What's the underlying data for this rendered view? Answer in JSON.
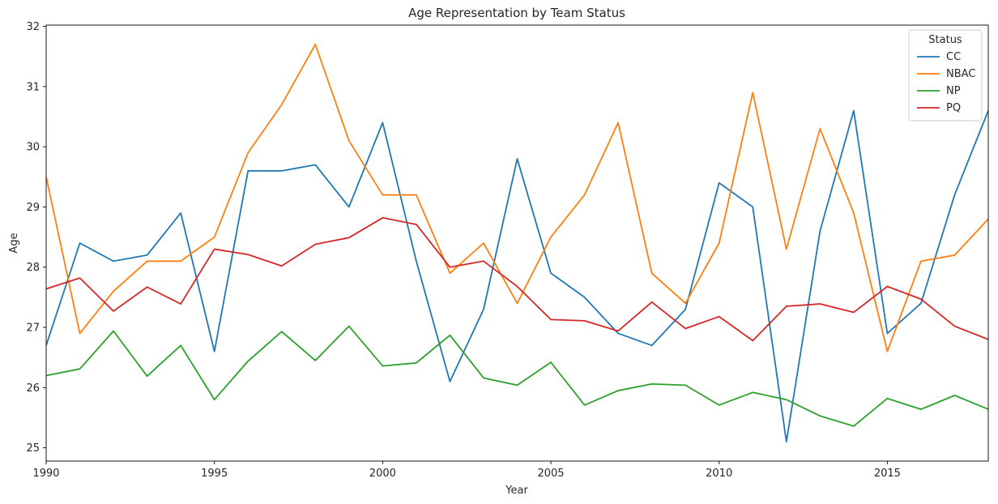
{
  "chart_data": {
    "type": "line",
    "title": "Age Representation by Team Status",
    "xlabel": "Year",
    "ylabel": "Age",
    "xlim": [
      1990,
      2018
    ],
    "ylim": [
      24.78,
      32.02
    ],
    "x_ticks": [
      1990,
      1995,
      2000,
      2005,
      2010,
      2015
    ],
    "y_ticks": [
      25,
      26,
      27,
      28,
      29,
      30,
      31,
      32
    ],
    "grid": false,
    "legend": {
      "title": "Status",
      "placement": "top-right"
    },
    "x": [
      1990,
      1991,
      1992,
      1993,
      1994,
      1995,
      1996,
      1997,
      1998,
      1999,
      2000,
      2001,
      2002,
      2003,
      2004,
      2005,
      2006,
      2007,
      2008,
      2009,
      2010,
      2011,
      2012,
      2013,
      2014,
      2015,
      2016,
      2017,
      2018
    ],
    "series": [
      {
        "name": "CC",
        "color": "#1f77b4",
        "values": [
          26.7,
          28.4,
          28.1,
          28.2,
          28.9,
          26.6,
          29.6,
          29.6,
          29.7,
          29.0,
          30.4,
          28.1,
          26.1,
          27.3,
          29.8,
          27.9,
          27.5,
          26.9,
          26.7,
          27.3,
          29.4,
          29.0,
          25.1,
          28.6,
          30.6,
          26.9,
          27.4,
          29.2,
          30.6
        ]
      },
      {
        "name": "NBAC",
        "color": "#ff7f0e",
        "values": [
          29.5,
          26.9,
          27.6,
          28.1,
          28.1,
          28.5,
          29.9,
          30.7,
          31.7,
          30.1,
          29.2,
          29.2,
          27.9,
          28.4,
          27.4,
          28.5,
          29.2,
          30.4,
          27.9,
          27.4,
          28.4,
          30.9,
          28.3,
          30.3,
          28.9,
          26.6,
          28.1,
          28.2,
          28.8
        ]
      },
      {
        "name": "NP",
        "color": "#2ca02c",
        "values": [
          26.2,
          26.31,
          26.94,
          26.19,
          26.7,
          25.8,
          26.44,
          26.93,
          26.45,
          27.02,
          26.36,
          26.41,
          26.87,
          26.16,
          26.04,
          26.42,
          25.71,
          25.95,
          26.06,
          26.04,
          25.71,
          25.92,
          25.8,
          25.53,
          25.36,
          25.82,
          25.64,
          25.87,
          25.64
        ]
      },
      {
        "name": "PQ",
        "color": "#d62728",
        "values": [
          27.64,
          27.82,
          27.27,
          27.67,
          27.39,
          28.3,
          28.21,
          28.02,
          28.38,
          28.49,
          28.82,
          28.71,
          28.0,
          28.1,
          27.68,
          27.13,
          27.11,
          26.94,
          27.42,
          26.98,
          27.18,
          26.78,
          27.35,
          27.39,
          27.25,
          27.68,
          27.47,
          27.02,
          26.8
        ]
      }
    ]
  }
}
